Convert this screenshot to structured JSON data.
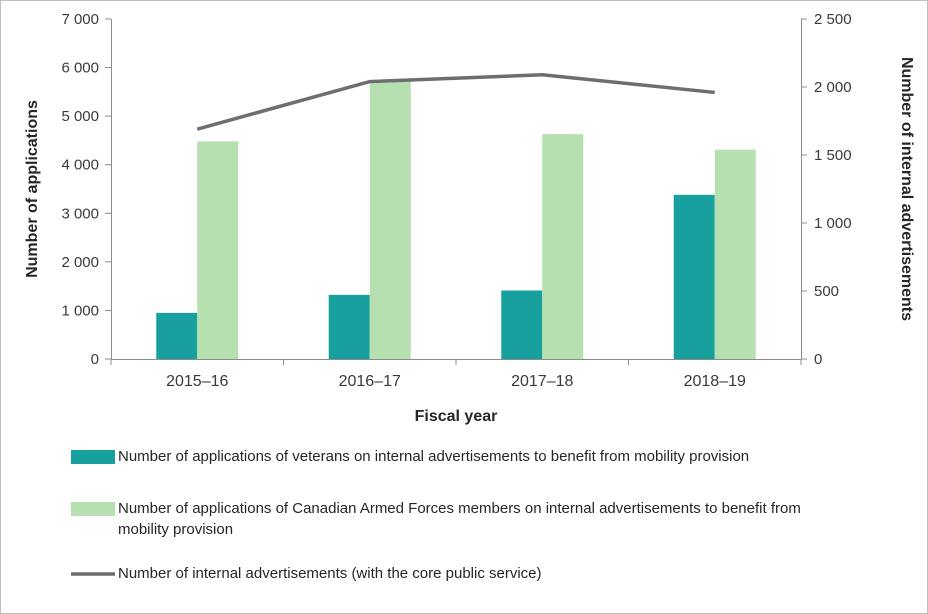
{
  "chart_data": {
    "type": "bar+line",
    "categories": [
      "2015–16",
      "2016–17",
      "2017–18",
      "2018–19"
    ],
    "series": [
      {
        "name": "Number of applications of veterans on internal advertisements to benefit from mobility provision",
        "type": "bar",
        "axis": "left",
        "color": "#17a09e",
        "values": [
          950,
          1320,
          1410,
          3380
        ]
      },
      {
        "name": "Number of applications of Canadian Armed Forces members on internal advertisements to benefit from mobility provision",
        "type": "bar",
        "axis": "left",
        "color": "#b7e0b0",
        "values": [
          4480,
          5730,
          4630,
          4310
        ]
      },
      {
        "name": "Number of internal advertisements (with the core public service)",
        "type": "line",
        "axis": "right",
        "color": "#6d6e71",
        "values": [
          1690,
          2040,
          2090,
          1960
        ]
      }
    ],
    "left_axis": {
      "label": "Number of applications",
      "min": 0,
      "max": 7000,
      "step": 1000,
      "tick_labels": [
        "0",
        "1 000",
        "2 000",
        "3 000",
        "4 000",
        "5 000",
        "6 000",
        "7 000"
      ]
    },
    "right_axis": {
      "label": "Number of internal advertisements",
      "min": 0,
      "max": 2500,
      "step": 500,
      "tick_labels": [
        "0",
        "500",
        "1 000",
        "1 500",
        "2 000",
        "2 500"
      ]
    },
    "xlabel": "Fiscal year",
    "legend_position": "bottom",
    "grid": false
  }
}
